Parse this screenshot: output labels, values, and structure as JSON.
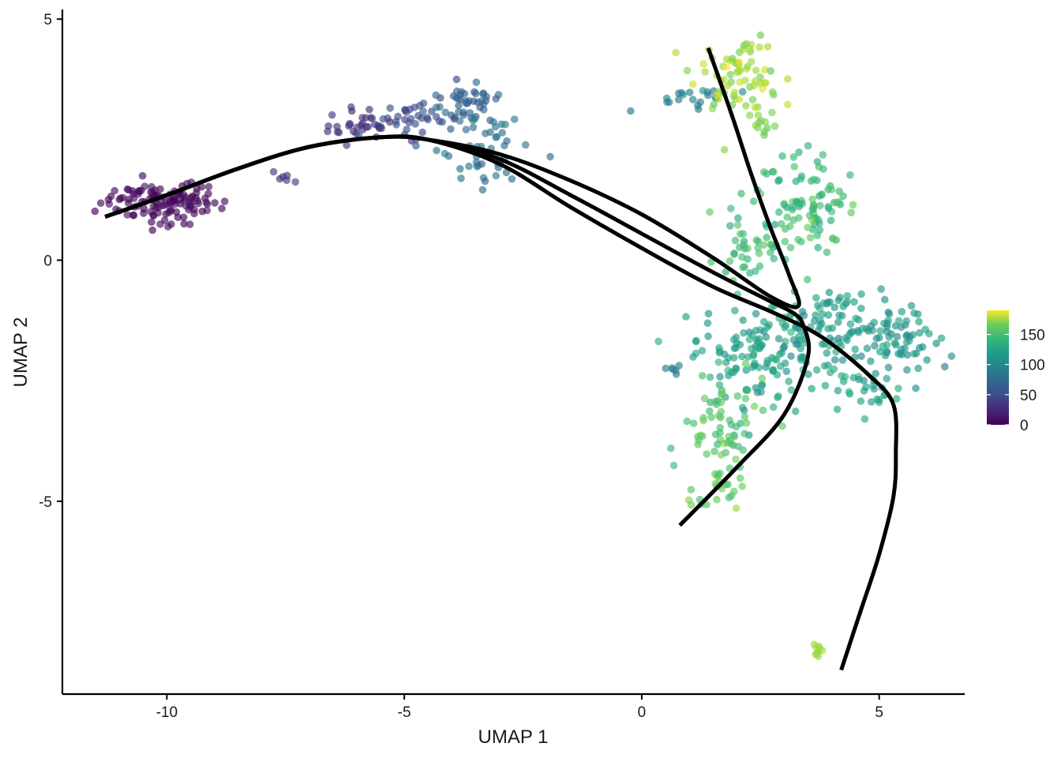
{
  "chart_data": {
    "type": "scatter",
    "title": "",
    "xlabel": "UMAP 1",
    "ylabel": "UMAP 2",
    "xlim": [
      -12.2,
      6.8
    ],
    "ylim": [
      -9.0,
      5.2
    ],
    "xticks": [
      {
        "value": -10,
        "label": "-10"
      },
      {
        "value": -5,
        "label": "-5"
      },
      {
        "value": 0,
        "label": "0"
      },
      {
        "value": 5,
        "label": "5"
      }
    ],
    "yticks": [
      {
        "value": -5,
        "label": "-5"
      },
      {
        "value": 0,
        "label": "0"
      },
      {
        "value": 5,
        "label": "5"
      }
    ],
    "grid": false,
    "point_color_scale": "viridis",
    "colorbar": {
      "placement": "right",
      "min": 0,
      "max": 190,
      "ticks": [
        {
          "value": 0,
          "label": "0"
        },
        {
          "value": 50,
          "label": "50"
        },
        {
          "value": 100,
          "label": "100"
        },
        {
          "value": 150,
          "label": "150"
        }
      ]
    },
    "clusters": [
      {
        "cx": -10.1,
        "cy": 1.2,
        "sx": 0.65,
        "sy": 0.22,
        "n": 120,
        "t": 5,
        "tsd": 4
      },
      {
        "cx": -7.5,
        "cy": 1.7,
        "sx": 0.12,
        "sy": 0.06,
        "n": 6,
        "t": 32,
        "tsd": 4
      },
      {
        "cx": -5.8,
        "cy": 2.8,
        "sx": 0.4,
        "sy": 0.18,
        "n": 35,
        "t": 28,
        "tsd": 5
      },
      {
        "cx": -4.6,
        "cy": 2.9,
        "sx": 0.4,
        "sy": 0.2,
        "n": 35,
        "t": 45,
        "tsd": 6
      },
      {
        "cx": -3.7,
        "cy": 3.3,
        "sx": 0.35,
        "sy": 0.2,
        "n": 40,
        "t": 60,
        "tsd": 7
      },
      {
        "cx": -3.4,
        "cy": 2.3,
        "sx": 0.45,
        "sy": 0.4,
        "n": 50,
        "t": 72,
        "tsd": 7
      },
      {
        "cx": 0.9,
        "cy": 3.4,
        "sx": 0.5,
        "sy": 0.12,
        "n": 20,
        "t": 85,
        "tsd": 8
      },
      {
        "cx": 2.0,
        "cy": 3.9,
        "sx": 0.45,
        "sy": 0.4,
        "n": 75,
        "t": 162,
        "tsd": 9
      },
      {
        "cx": 2.5,
        "cy": 2.8,
        "sx": 0.15,
        "sy": 0.18,
        "n": 10,
        "t": 150,
        "tsd": 6
      },
      {
        "cx": 3.5,
        "cy": 1.2,
        "sx": 0.55,
        "sy": 0.55,
        "n": 95,
        "t": 128,
        "tsd": 9
      },
      {
        "cx": 2.2,
        "cy": 0.2,
        "sx": 0.4,
        "sy": 0.5,
        "n": 40,
        "t": 125,
        "tsd": 9
      },
      {
        "cx": 2.6,
        "cy": -1.9,
        "sx": 0.75,
        "sy": 0.55,
        "n": 150,
        "t": 108,
        "tsd": 9
      },
      {
        "cx": 4.2,
        "cy": -1.3,
        "sx": 0.55,
        "sy": 0.35,
        "n": 60,
        "t": 105,
        "tsd": 7
      },
      {
        "cx": 5.3,
        "cy": -1.7,
        "sx": 0.45,
        "sy": 0.4,
        "n": 70,
        "t": 100,
        "tsd": 7
      },
      {
        "cx": 4.7,
        "cy": -2.7,
        "sx": 0.4,
        "sy": 0.25,
        "n": 25,
        "t": 110,
        "tsd": 8
      },
      {
        "cx": 0.75,
        "cy": -2.25,
        "sx": 0.1,
        "sy": 0.08,
        "n": 6,
        "t": 80,
        "tsd": 4
      },
      {
        "cx": 1.8,
        "cy": -3.6,
        "sx": 0.45,
        "sy": 0.5,
        "n": 60,
        "t": 135,
        "tsd": 9
      },
      {
        "cx": 1.6,
        "cy": -4.7,
        "sx": 0.25,
        "sy": 0.3,
        "n": 25,
        "t": 142,
        "tsd": 8
      },
      {
        "cx": 3.7,
        "cy": -8.1,
        "sx": 0.04,
        "sy": 0.06,
        "n": 8,
        "t": 160,
        "tsd": 4
      }
    ],
    "lineages": [
      {
        "name": "",
        "x": [
          -11.3,
          -10.0,
          -8.5,
          -7.0,
          -5.5,
          -4.5,
          -3.0,
          -1.5,
          0.0,
          1.5,
          2.7,
          3.2,
          3.4,
          3.5,
          3.0,
          2.0,
          0.8
        ],
        "y": [
          0.9,
          1.35,
          1.9,
          2.35,
          2.55,
          2.5,
          2.1,
          1.35,
          0.55,
          -0.25,
          -0.85,
          -1.1,
          -1.35,
          -2.0,
          -3.2,
          -4.3,
          -5.5
        ]
      },
      {
        "name": "",
        "x": [
          -11.3,
          -10.0,
          -8.5,
          -7.0,
          -5.5,
          -4.5,
          -3.0,
          -1.5,
          0.0,
          1.5,
          2.7,
          3.3,
          3.1,
          2.7,
          2.3,
          1.9,
          1.4
        ],
        "y": [
          0.9,
          1.35,
          1.9,
          2.35,
          2.55,
          2.5,
          2.2,
          1.65,
          0.95,
          0.05,
          -0.75,
          -0.95,
          -0.3,
          0.7,
          1.8,
          3.0,
          4.4
        ]
      },
      {
        "name": "",
        "x": [
          -11.3,
          -10.0,
          -8.5,
          -7.0,
          -5.5,
          -4.5,
          -3.0,
          -1.5,
          0.0,
          1.5,
          2.8,
          3.8,
          4.8,
          5.3,
          5.35,
          5.3,
          5.0,
          4.6,
          4.2
        ],
        "y": [
          0.9,
          1.35,
          1.9,
          2.35,
          2.55,
          2.5,
          2.0,
          1.1,
          0.25,
          -0.55,
          -1.1,
          -1.6,
          -2.4,
          -3.0,
          -4.0,
          -4.9,
          -6.1,
          -7.3,
          -8.5
        ]
      }
    ]
  }
}
